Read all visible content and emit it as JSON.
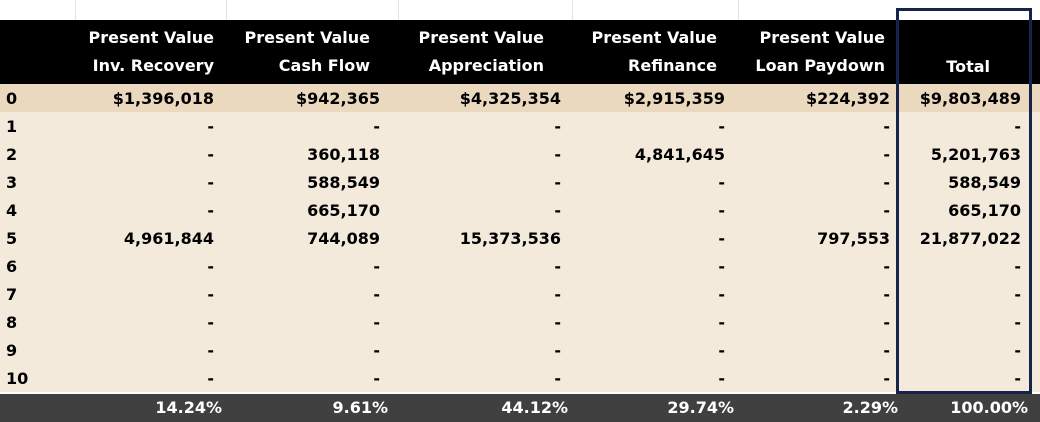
{
  "header": {
    "columns": [
      {
        "line1": "Present Value",
        "line2": "Inv. Recovery"
      },
      {
        "line1": "Present Value",
        "line2": "Cash Flow"
      },
      {
        "line1": "Present Value",
        "line2": "Appreciation"
      },
      {
        "line1": "Present Value",
        "line2": "Refinance"
      },
      {
        "line1": "Present Value",
        "line2": "Loan Paydown"
      },
      {
        "line1": "",
        "line2": "Total"
      }
    ]
  },
  "rows": [
    {
      "year": "0",
      "values": [
        "$1,396,018",
        "$942,365",
        "$4,325,354",
        "$2,915,359",
        "$224,392",
        "$9,803,489"
      ]
    },
    {
      "year": "1",
      "values": [
        "-",
        "-",
        "-",
        "-",
        "-",
        "-"
      ]
    },
    {
      "year": "2",
      "values": [
        "-",
        "360,118",
        "-",
        "4,841,645",
        "-",
        "5,201,763"
      ]
    },
    {
      "year": "3",
      "values": [
        "-",
        "588,549",
        "-",
        "-",
        "-",
        "588,549"
      ]
    },
    {
      "year": "4",
      "values": [
        "-",
        "665,170",
        "-",
        "-",
        "-",
        "665,170"
      ]
    },
    {
      "year": "5",
      "values": [
        "4,961,844",
        "744,089",
        "15,373,536",
        "-",
        "797,553",
        "21,877,022"
      ]
    },
    {
      "year": "6",
      "values": [
        "-",
        "-",
        "-",
        "-",
        "-",
        "-"
      ]
    },
    {
      "year": "7",
      "values": [
        "-",
        "-",
        "-",
        "-",
        "-",
        "-"
      ]
    },
    {
      "year": "8",
      "values": [
        "-",
        "-",
        "-",
        "-",
        "-",
        "-"
      ]
    },
    {
      "year": "9",
      "values": [
        "-",
        "-",
        "-",
        "-",
        "-",
        "-"
      ]
    },
    {
      "year": "10",
      "values": [
        "-",
        "-",
        "-",
        "-",
        "-",
        "-"
      ]
    }
  ],
  "footer": {
    "percentages": [
      "14.24%",
      "9.61%",
      "44.12%",
      "29.74%",
      "2.29%",
      "100.00%"
    ]
  },
  "colors": {
    "header_bg": "#000000",
    "first_row_bg": "#ead8bf",
    "row_bg": "#f4eadc",
    "footer_bg": "#404040",
    "highlight_border": "#16234a"
  }
}
